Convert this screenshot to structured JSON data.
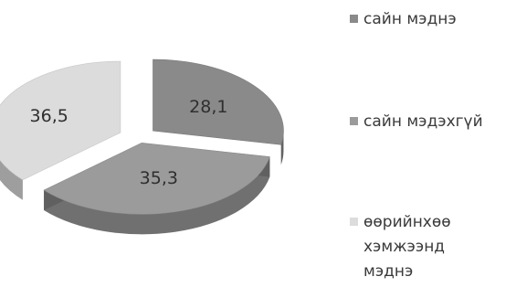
{
  "chart_data": {
    "type": "pie",
    "style": "3d-exploded",
    "slices": [
      {
        "label": "сайн мэднэ",
        "value": 28.1,
        "display": "28,1",
        "color": "#8a8a8a"
      },
      {
        "label": "сайн мэдэхгүй",
        "value": 35.3,
        "display": "35,3",
        "color": "#9b9b9b"
      },
      {
        "label": "өөрийнхөө хэмжээнд мэднэ",
        "value": 36.5,
        "display": "36,5",
        "color": "#dcdcdc"
      }
    ],
    "legend_position": "right"
  }
}
